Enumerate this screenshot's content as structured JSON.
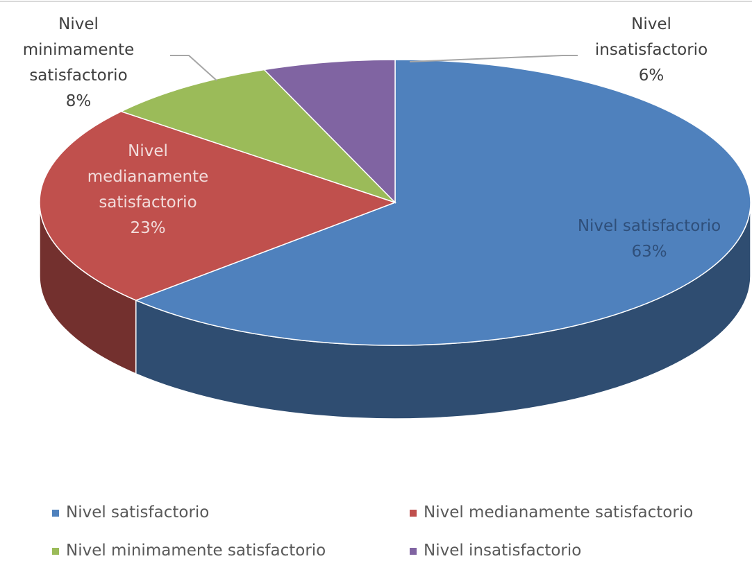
{
  "chart_data": {
    "type": "pie",
    "categories": [
      "Nivel satisfactorio",
      "Nivel medianamente satisfactorio",
      "Nivel minimamente satisfactorio",
      "Nivel insatisfactorio"
    ],
    "values": [
      63,
      23,
      8,
      6
    ],
    "value_labels": [
      "63%",
      "23%",
      "8%",
      "6%"
    ],
    "colors": [
      "#4f81bd",
      "#c0504d",
      "#9bbb59",
      "#8064a2"
    ],
    "legend": "bottom"
  }
}
